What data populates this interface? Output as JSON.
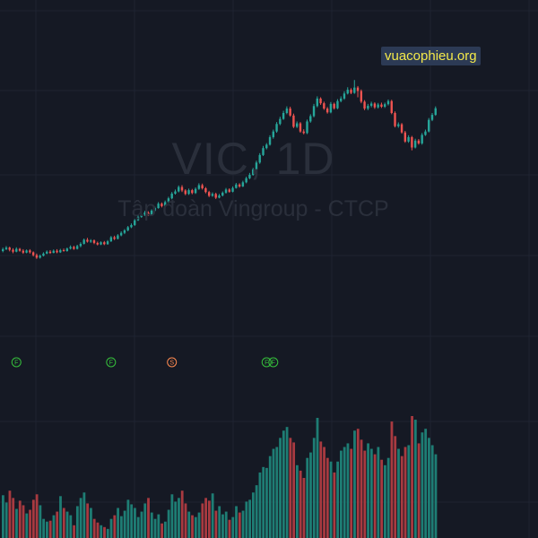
{
  "watermark": {
    "symbol": "VIC, 1D",
    "name": "Tập đoàn Vingroup - CTCP"
  },
  "brand_label": "vuacophieu.org",
  "colors": {
    "background": "#151924",
    "grid": "#1f2431",
    "up": "#26a69a",
    "down": "#ef5350",
    "up_volume": "#1e7d74",
    "down_volume": "#a83a40",
    "marker_f": "#36c13b",
    "marker_s": "#ff8a50"
  },
  "chart_data": {
    "type": "candlestick",
    "title": "",
    "price_scale": {
      "min": 40,
      "max": 122
    },
    "candles": [
      [
        52.0,
        52.6,
        53.1,
        51.6
      ],
      [
        52.6,
        53.1,
        53.6,
        52.3
      ],
      [
        53.1,
        52.4,
        53.4,
        51.9
      ],
      [
        52.4,
        51.8,
        52.9,
        51.3
      ],
      [
        51.8,
        52.7,
        53.2,
        51.6
      ],
      [
        52.7,
        52.1,
        53.0,
        51.8
      ],
      [
        52.1,
        51.5,
        52.6,
        51.1
      ],
      [
        51.5,
        52.2,
        52.5,
        51.3
      ],
      [
        52.2,
        51.6,
        52.6,
        51.2
      ],
      [
        51.6,
        50.7,
        51.9,
        50.3
      ],
      [
        50.7,
        49.9,
        51.2,
        49.5
      ],
      [
        49.9,
        50.5,
        50.9,
        49.6
      ],
      [
        50.5,
        51.2,
        51.6,
        50.3
      ],
      [
        51.2,
        51.8,
        52.2,
        51.0
      ],
      [
        51.8,
        51.4,
        52.3,
        51.1
      ],
      [
        51.4,
        52.1,
        52.5,
        51.3
      ],
      [
        52.1,
        51.6,
        52.6,
        51.3
      ],
      [
        51.6,
        52.3,
        52.7,
        51.4
      ],
      [
        52.3,
        52.0,
        52.8,
        51.8
      ],
      [
        52.0,
        52.8,
        53.1,
        51.8
      ],
      [
        52.8,
        53.3,
        53.8,
        52.5
      ],
      [
        53.3,
        52.7,
        53.7,
        52.4
      ],
      [
        52.7,
        53.6,
        54.0,
        52.5
      ],
      [
        53.6,
        54.3,
        54.8,
        53.2
      ],
      [
        54.3,
        55.6,
        56.0,
        54.1
      ],
      [
        55.6,
        55.0,
        56.2,
        54.7
      ],
      [
        55.0,
        55.4,
        55.8,
        54.6
      ],
      [
        55.4,
        54.6,
        55.7,
        54.2
      ],
      [
        54.6,
        54.1,
        55.0,
        53.8
      ],
      [
        54.1,
        54.8,
        55.1,
        53.9
      ],
      [
        54.8,
        54.2,
        55.2,
        53.9
      ],
      [
        54.2,
        55.1,
        55.5,
        54.0
      ],
      [
        55.1,
        56.4,
        56.8,
        54.9
      ],
      [
        56.4,
        55.9,
        56.9,
        55.5
      ],
      [
        55.9,
        57.0,
        57.4,
        55.7
      ],
      [
        57.0,
        57.8,
        58.3,
        56.7
      ],
      [
        57.8,
        58.6,
        59.0,
        57.4
      ],
      [
        58.6,
        59.6,
        60.0,
        58.3
      ],
      [
        59.6,
        60.3,
        60.8,
        59.3
      ],
      [
        60.3,
        61.8,
        62.2,
        60.0
      ],
      [
        61.8,
        62.9,
        63.4,
        61.6
      ],
      [
        62.9,
        63.6,
        64.1,
        62.6
      ],
      [
        63.6,
        64.3,
        64.8,
        63.2
      ],
      [
        64.3,
        63.6,
        64.7,
        63.2
      ],
      [
        63.6,
        64.9,
        65.3,
        63.4
      ],
      [
        64.9,
        65.7,
        66.1,
        64.6
      ],
      [
        65.7,
        67.1,
        67.6,
        65.5
      ],
      [
        67.1,
        66.3,
        67.5,
        65.9
      ],
      [
        66.3,
        67.6,
        68.1,
        66.1
      ],
      [
        67.6,
        68.8,
        69.3,
        67.3
      ],
      [
        68.8,
        70.3,
        70.8,
        68.5
      ],
      [
        70.3,
        71.0,
        71.6,
        70.0
      ],
      [
        71.0,
        72.4,
        72.9,
        70.7
      ],
      [
        72.4,
        71.3,
        73.0,
        70.8
      ],
      [
        71.3,
        70.2,
        71.7,
        69.8
      ],
      [
        70.2,
        71.4,
        71.9,
        69.9
      ],
      [
        71.4,
        70.5,
        71.8,
        70.1
      ],
      [
        70.5,
        71.8,
        72.3,
        70.2
      ],
      [
        71.8,
        73.0,
        73.6,
        71.5
      ],
      [
        73.0,
        72.0,
        73.5,
        71.6
      ],
      [
        72.0,
        70.8,
        72.4,
        70.4
      ],
      [
        70.8,
        69.6,
        71.2,
        69.2
      ],
      [
        69.6,
        70.2,
        70.7,
        69.3
      ],
      [
        70.2,
        69.0,
        70.6,
        68.6
      ],
      [
        69.0,
        69.7,
        70.2,
        68.8
      ],
      [
        69.7,
        70.6,
        71.0,
        69.4
      ],
      [
        70.6,
        71.6,
        72.1,
        70.3
      ],
      [
        71.6,
        70.9,
        72.0,
        70.6
      ],
      [
        70.9,
        72.1,
        72.6,
        70.7
      ],
      [
        72.1,
        73.2,
        73.7,
        71.9
      ],
      [
        73.2,
        72.6,
        73.6,
        72.2
      ],
      [
        72.6,
        73.9,
        74.4,
        72.4
      ],
      [
        73.9,
        75.2,
        75.7,
        73.6
      ],
      [
        75.2,
        76.3,
        76.9,
        74.9
      ],
      [
        76.3,
        78.0,
        78.5,
        76.0
      ],
      [
        78.0,
        80.2,
        80.8,
        77.7
      ],
      [
        80.2,
        82.6,
        83.2,
        79.8
      ],
      [
        82.6,
        84.8,
        85.5,
        82.3
      ],
      [
        84.8,
        85.9,
        86.4,
        84.4
      ],
      [
        85.9,
        88.3,
        88.9,
        85.6
      ],
      [
        88.3,
        90.1,
        90.7,
        87.8
      ],
      [
        90.1,
        92.5,
        93.1,
        89.7
      ],
      [
        92.5,
        94.1,
        94.8,
        92.1
      ],
      [
        94.1,
        96.0,
        96.7,
        93.8
      ],
      [
        96.0,
        97.4,
        98.1,
        95.6
      ],
      [
        97.4,
        95.2,
        98.0,
        94.8
      ],
      [
        95.2,
        91.6,
        95.8,
        91.2
      ],
      [
        91.6,
        92.7,
        93.3,
        91.2
      ],
      [
        92.7,
        90.1,
        93.1,
        89.7
      ],
      [
        90.1,
        89.6,
        90.8,
        89.2
      ],
      [
        89.6,
        93.3,
        93.9,
        89.3
      ],
      [
        93.3,
        95.0,
        95.6,
        92.9
      ],
      [
        95.0,
        98.2,
        98.9,
        94.6
      ],
      [
        98.2,
        100.6,
        101.3,
        97.8
      ],
      [
        100.6,
        99.1,
        101.0,
        98.6
      ],
      [
        99.1,
        97.4,
        99.6,
        97.0
      ],
      [
        97.4,
        96.2,
        97.9,
        95.8
      ],
      [
        96.2,
        98.9,
        99.5,
        95.9
      ],
      [
        98.9,
        97.5,
        99.3,
        97.1
      ],
      [
        97.5,
        99.8,
        100.4,
        97.2
      ],
      [
        99.8,
        100.6,
        101.3,
        99.4
      ],
      [
        100.6,
        102.2,
        102.9,
        100.2
      ],
      [
        102.2,
        103.4,
        104.2,
        101.9
      ],
      [
        103.4,
        102.4,
        103.9,
        102.0
      ],
      [
        102.4,
        104.1,
        106.5,
        102.1
      ],
      [
        104.1,
        103.0,
        104.6,
        101.0
      ],
      [
        103.0,
        99.6,
        103.5,
        99.1
      ],
      [
        99.6,
        97.4,
        100.1,
        96.9
      ],
      [
        97.4,
        98.3,
        98.9,
        96.9
      ],
      [
        98.3,
        99.0,
        99.6,
        97.8
      ],
      [
        99.0,
        97.8,
        99.4,
        97.3
      ],
      [
        97.8,
        98.7,
        99.2,
        97.4
      ],
      [
        98.7,
        98.0,
        99.3,
        97.6
      ],
      [
        98.0,
        98.8,
        99.3,
        97.6
      ],
      [
        98.8,
        99.8,
        100.3,
        98.4
      ],
      [
        99.8,
        96.0,
        100.2,
        95.6
      ],
      [
        96.0,
        91.8,
        96.5,
        91.4
      ],
      [
        91.8,
        92.4,
        93.0,
        91.3
      ],
      [
        92.4,
        89.8,
        92.8,
        89.4
      ],
      [
        89.8,
        86.9,
        90.3,
        86.5
      ],
      [
        86.9,
        88.3,
        88.9,
        86.5
      ],
      [
        88.3,
        85.0,
        88.7,
        84.1
      ],
      [
        85.0,
        87.2,
        87.8,
        84.7
      ],
      [
        87.2,
        86.3,
        87.7,
        85.9
      ],
      [
        86.3,
        89.0,
        89.6,
        85.9
      ],
      [
        89.0,
        90.1,
        90.7,
        88.7
      ],
      [
        90.1,
        93.8,
        94.4,
        89.8
      ],
      [
        93.8,
        95.4,
        96.0,
        93.4
      ],
      [
        95.4,
        97.5,
        98.1,
        95.1
      ]
    ],
    "volume": [
      [
        47,
        1
      ],
      [
        39,
        1
      ],
      [
        52,
        0
      ],
      [
        44,
        0
      ],
      [
        32,
        1
      ],
      [
        41,
        0
      ],
      [
        36,
        0
      ],
      [
        27,
        1
      ],
      [
        31,
        0
      ],
      [
        42,
        0
      ],
      [
        48,
        0
      ],
      [
        36,
        1
      ],
      [
        21,
        1
      ],
      [
        18,
        1
      ],
      [
        19,
        0
      ],
      [
        25,
        1
      ],
      [
        29,
        0
      ],
      [
        46,
        1
      ],
      [
        33,
        0
      ],
      [
        29,
        1
      ],
      [
        25,
        1
      ],
      [
        14,
        0
      ],
      [
        35,
        1
      ],
      [
        44,
        1
      ],
      [
        50,
        1
      ],
      [
        38,
        0
      ],
      [
        33,
        1
      ],
      [
        21,
        0
      ],
      [
        17,
        0
      ],
      [
        14,
        1
      ],
      [
        12,
        0
      ],
      [
        10,
        1
      ],
      [
        21,
        1
      ],
      [
        25,
        0
      ],
      [
        33,
        1
      ],
      [
        24,
        1
      ],
      [
        30,
        1
      ],
      [
        42,
        1
      ],
      [
        37,
        1
      ],
      [
        33,
        1
      ],
      [
        23,
        1
      ],
      [
        29,
        1
      ],
      [
        38,
        1
      ],
      [
        44,
        0
      ],
      [
        28,
        1
      ],
      [
        21,
        1
      ],
      [
        26,
        1
      ],
      [
        16,
        0
      ],
      [
        18,
        1
      ],
      [
        31,
        1
      ],
      [
        48,
        1
      ],
      [
        40,
        1
      ],
      [
        44,
        1
      ],
      [
        52,
        0
      ],
      [
        38,
        0
      ],
      [
        29,
        1
      ],
      [
        25,
        0
      ],
      [
        23,
        1
      ],
      [
        28,
        1
      ],
      [
        38,
        0
      ],
      [
        44,
        0
      ],
      [
        41,
        0
      ],
      [
        49,
        1
      ],
      [
        30,
        0
      ],
      [
        35,
        1
      ],
      [
        26,
        1
      ],
      [
        29,
        1
      ],
      [
        20,
        0
      ],
      [
        23,
        1
      ],
      [
        35,
        1
      ],
      [
        28,
        0
      ],
      [
        30,
        1
      ],
      [
        40,
        1
      ],
      [
        42,
        1
      ],
      [
        50,
        1
      ],
      [
        58,
        1
      ],
      [
        72,
        1
      ],
      [
        78,
        1
      ],
      [
        77,
        1
      ],
      [
        90,
        1
      ],
      [
        98,
        1
      ],
      [
        100,
        1
      ],
      [
        110,
        1
      ],
      [
        118,
        1
      ],
      [
        122,
        1
      ],
      [
        110,
        0
      ],
      [
        105,
        0
      ],
      [
        80,
        1
      ],
      [
        74,
        0
      ],
      [
        66,
        0
      ],
      [
        88,
        1
      ],
      [
        94,
        1
      ],
      [
        110,
        1
      ],
      [
        132,
        1
      ],
      [
        106,
        0
      ],
      [
        100,
        0
      ],
      [
        88,
        0
      ],
      [
        84,
        1
      ],
      [
        72,
        0
      ],
      [
        84,
        1
      ],
      [
        96,
        1
      ],
      [
        100,
        1
      ],
      [
        104,
        1
      ],
      [
        98,
        0
      ],
      [
        118,
        1
      ],
      [
        120,
        0
      ],
      [
        108,
        0
      ],
      [
        96,
        0
      ],
      [
        104,
        1
      ],
      [
        98,
        1
      ],
      [
        92,
        0
      ],
      [
        100,
        1
      ],
      [
        86,
        0
      ],
      [
        80,
        1
      ],
      [
        88,
        1
      ],
      [
        128,
        0
      ],
      [
        112,
        0
      ],
      [
        98,
        1
      ],
      [
        90,
        0
      ],
      [
        100,
        0
      ],
      [
        102,
        1
      ],
      [
        134,
        0
      ],
      [
        130,
        1
      ],
      [
        104,
        0
      ],
      [
        116,
        1
      ],
      [
        120,
        1
      ],
      [
        110,
        1
      ],
      [
        102,
        1
      ],
      [
        92,
        1
      ]
    ],
    "markers": [
      {
        "label": "F",
        "index": 4,
        "kind": "F"
      },
      {
        "label": "F",
        "index": 32,
        "kind": "F"
      },
      {
        "label": "S",
        "index": 50,
        "kind": "S"
      },
      {
        "label": "F",
        "index": 78,
        "kind": "F"
      },
      {
        "label": "F",
        "index": 80,
        "kind": "F"
      }
    ],
    "grid": true,
    "legend": "none"
  }
}
